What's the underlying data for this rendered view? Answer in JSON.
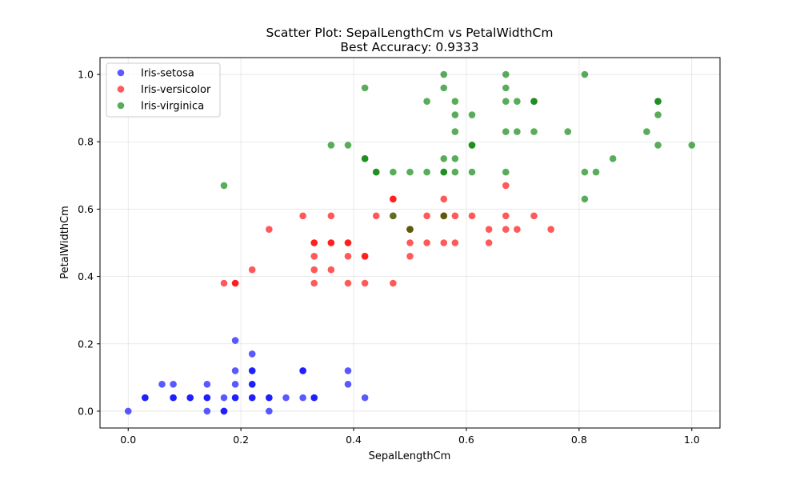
{
  "chart_data": {
    "type": "scatter",
    "title": "Scatter Plot: SepalLengthCm vs PetalWidthCm",
    "subtitle": "Best Accuracy: 0.9333",
    "xlabel": "SepalLengthCm",
    "ylabel": "PetalWidthCm",
    "xlim": [
      -0.05,
      1.05
    ],
    "ylim": [
      -0.05,
      1.05
    ],
    "xticks": [
      "0.0",
      "0.2",
      "0.4",
      "0.6",
      "0.8",
      "1.0"
    ],
    "yticks": [
      "0.0",
      "0.2",
      "0.4",
      "0.6",
      "0.8",
      "1.0"
    ],
    "grid": true,
    "legend_position": "top-left",
    "point_alpha": 0.65,
    "series": [
      {
        "name": "Iris-setosa",
        "color": "#0000ff",
        "points": [
          [
            0.0,
            0.0
          ],
          [
            0.03,
            0.04
          ],
          [
            0.03,
            0.04
          ],
          [
            0.06,
            0.08
          ],
          [
            0.08,
            0.04
          ],
          [
            0.08,
            0.08
          ],
          [
            0.08,
            0.04
          ],
          [
            0.11,
            0.04
          ],
          [
            0.11,
            0.04
          ],
          [
            0.14,
            0.04
          ],
          [
            0.14,
            0.08
          ],
          [
            0.14,
            0.0
          ],
          [
            0.14,
            0.04
          ],
          [
            0.17,
            0.04
          ],
          [
            0.17,
            0.0
          ],
          [
            0.17,
            0.0
          ],
          [
            0.19,
            0.21
          ],
          [
            0.19,
            0.12
          ],
          [
            0.19,
            0.08
          ],
          [
            0.19,
            0.04
          ],
          [
            0.19,
            0.04
          ],
          [
            0.22,
            0.17
          ],
          [
            0.22,
            0.12
          ],
          [
            0.22,
            0.12
          ],
          [
            0.22,
            0.08
          ],
          [
            0.22,
            0.08
          ],
          [
            0.22,
            0.04
          ],
          [
            0.22,
            0.04
          ],
          [
            0.25,
            0.04
          ],
          [
            0.25,
            0.04
          ],
          [
            0.25,
            0.0
          ],
          [
            0.28,
            0.04
          ],
          [
            0.31,
            0.12
          ],
          [
            0.31,
            0.12
          ],
          [
            0.31,
            0.04
          ],
          [
            0.33,
            0.04
          ],
          [
            0.33,
            0.04
          ],
          [
            0.39,
            0.12
          ],
          [
            0.39,
            0.08
          ],
          [
            0.42,
            0.04
          ]
        ]
      },
      {
        "name": "Iris-versicolor",
        "color": "#ff0000",
        "points": [
          [
            0.17,
            0.38
          ],
          [
            0.19,
            0.38
          ],
          [
            0.19,
            0.38
          ],
          [
            0.22,
            0.42
          ],
          [
            0.25,
            0.54
          ],
          [
            0.31,
            0.58
          ],
          [
            0.33,
            0.5
          ],
          [
            0.33,
            0.5
          ],
          [
            0.33,
            0.46
          ],
          [
            0.33,
            0.42
          ],
          [
            0.33,
            0.38
          ],
          [
            0.36,
            0.58
          ],
          [
            0.36,
            0.5
          ],
          [
            0.36,
            0.5
          ],
          [
            0.36,
            0.42
          ],
          [
            0.39,
            0.5
          ],
          [
            0.39,
            0.5
          ],
          [
            0.39,
            0.46
          ],
          [
            0.39,
            0.38
          ],
          [
            0.42,
            0.46
          ],
          [
            0.42,
            0.46
          ],
          [
            0.42,
            0.38
          ],
          [
            0.44,
            0.58
          ],
          [
            0.47,
            0.63
          ],
          [
            0.47,
            0.63
          ],
          [
            0.47,
            0.58
          ],
          [
            0.47,
            0.38
          ],
          [
            0.5,
            0.54
          ],
          [
            0.5,
            0.54
          ],
          [
            0.5,
            0.5
          ],
          [
            0.5,
            0.46
          ],
          [
            0.53,
            0.58
          ],
          [
            0.53,
            0.5
          ],
          [
            0.56,
            0.63
          ],
          [
            0.56,
            0.58
          ],
          [
            0.56,
            0.58
          ],
          [
            0.56,
            0.5
          ],
          [
            0.58,
            0.58
          ],
          [
            0.58,
            0.5
          ],
          [
            0.61,
            0.58
          ],
          [
            0.64,
            0.54
          ],
          [
            0.64,
            0.5
          ],
          [
            0.67,
            0.67
          ],
          [
            0.67,
            0.58
          ],
          [
            0.67,
            0.54
          ],
          [
            0.69,
            0.54
          ],
          [
            0.72,
            0.58
          ],
          [
            0.75,
            0.54
          ]
        ]
      },
      {
        "name": "Iris-virginica",
        "color": "#008000",
        "points": [
          [
            0.17,
            0.67
          ],
          [
            0.36,
            0.79
          ],
          [
            0.39,
            0.79
          ],
          [
            0.42,
            0.96
          ],
          [
            0.42,
            0.75
          ],
          [
            0.42,
            0.75
          ],
          [
            0.44,
            0.71
          ],
          [
            0.44,
            0.71
          ],
          [
            0.47,
            0.71
          ],
          [
            0.47,
            0.58
          ],
          [
            0.5,
            0.71
          ],
          [
            0.5,
            0.54
          ],
          [
            0.53,
            0.92
          ],
          [
            0.53,
            0.71
          ],
          [
            0.56,
            1.0
          ],
          [
            0.56,
            0.96
          ],
          [
            0.56,
            0.75
          ],
          [
            0.56,
            0.71
          ],
          [
            0.56,
            0.71
          ],
          [
            0.56,
            0.58
          ],
          [
            0.58,
            0.92
          ],
          [
            0.58,
            0.88
          ],
          [
            0.58,
            0.83
          ],
          [
            0.58,
            0.75
          ],
          [
            0.58,
            0.71
          ],
          [
            0.61,
            0.88
          ],
          [
            0.61,
            0.79
          ],
          [
            0.61,
            0.79
          ],
          [
            0.61,
            0.71
          ],
          [
            0.67,
            1.0
          ],
          [
            0.67,
            0.96
          ],
          [
            0.67,
            0.92
          ],
          [
            0.67,
            0.83
          ],
          [
            0.67,
            0.71
          ],
          [
            0.69,
            0.92
          ],
          [
            0.69,
            0.83
          ],
          [
            0.72,
            0.92
          ],
          [
            0.72,
            0.92
          ],
          [
            0.72,
            0.83
          ],
          [
            0.78,
            0.83
          ],
          [
            0.81,
            1.0
          ],
          [
            0.81,
            0.71
          ],
          [
            0.81,
            0.63
          ],
          [
            0.83,
            0.71
          ],
          [
            0.86,
            0.75
          ],
          [
            0.92,
            0.83
          ],
          [
            0.94,
            0.92
          ],
          [
            0.94,
            0.92
          ],
          [
            0.94,
            0.88
          ],
          [
            0.94,
            0.79
          ],
          [
            1.0,
            0.79
          ]
        ]
      }
    ]
  }
}
